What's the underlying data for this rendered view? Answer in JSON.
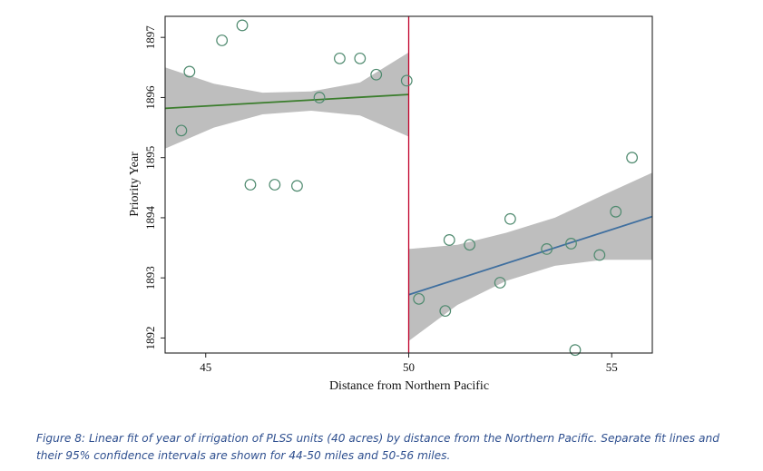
{
  "chart_data": {
    "type": "scatter",
    "xlabel": "Distance from Northern Pacific",
    "ylabel": "Priority Year",
    "xlim": [
      44.0,
      56.0
    ],
    "ylim": [
      1891.75,
      1897.35
    ],
    "xticks": [
      45,
      50,
      55
    ],
    "yticks": [
      1892,
      1893,
      1894,
      1895,
      1896,
      1897
    ],
    "cutoff_x": 50,
    "grid": false,
    "points": [
      {
        "x": 44.4,
        "y": 1895.45
      },
      {
        "x": 44.6,
        "y": 1896.43
      },
      {
        "x": 45.4,
        "y": 1896.95
      },
      {
        "x": 45.9,
        "y": 1897.2
      },
      {
        "x": 47.8,
        "y": 1896.0
      },
      {
        "x": 46.1,
        "y": 1894.55
      },
      {
        "x": 46.7,
        "y": 1894.55
      },
      {
        "x": 47.25,
        "y": 1894.53
      },
      {
        "x": 48.3,
        "y": 1896.65
      },
      {
        "x": 48.8,
        "y": 1896.65
      },
      {
        "x": 49.2,
        "y": 1896.38
      },
      {
        "x": 49.95,
        "y": 1896.28
      },
      {
        "x": 50.25,
        "y": 1892.65
      },
      {
        "x": 50.9,
        "y": 1892.45
      },
      {
        "x": 51.0,
        "y": 1893.63
      },
      {
        "x": 51.5,
        "y": 1893.55
      },
      {
        "x": 52.25,
        "y": 1892.92
      },
      {
        "x": 52.5,
        "y": 1893.98
      },
      {
        "x": 53.4,
        "y": 1893.48
      },
      {
        "x": 54.0,
        "y": 1893.57
      },
      {
        "x": 54.1,
        "y": 1891.8
      },
      {
        "x": 54.7,
        "y": 1893.38
      },
      {
        "x": 55.1,
        "y": 1894.1
      },
      {
        "x": 55.5,
        "y": 1895.0
      }
    ],
    "fits": [
      {
        "range": [
          44.0,
          50.0
        ],
        "line": [
          1895.82,
          1896.05
        ],
        "ci_upper": [
          1896.5,
          1896.23,
          1896.08,
          1896.1,
          1896.25,
          1896.75
        ],
        "ci_lower": [
          1895.15,
          1895.5,
          1895.72,
          1895.78,
          1895.7,
          1895.35
        ],
        "line_color": "#3a7d2c"
      },
      {
        "range": [
          50.0,
          56.0
        ],
        "line": [
          1892.72,
          1894.02
        ],
        "ci_upper": [
          1893.48,
          1893.55,
          1893.75,
          1894.0,
          1894.38,
          1894.75
        ],
        "ci_lower": [
          1891.95,
          1892.55,
          1892.95,
          1893.2,
          1893.3,
          1893.3
        ],
        "line_color": "#3f6f9f"
      }
    ],
    "ci_color": "#bebebe",
    "marker_color": "#4f8a6f",
    "cutoff_color": "#c0002a"
  },
  "caption": "Figure 8: Linear fit of year of irrigation of PLSS units (40 acres) by distance from the Northern Pacific. Separate fit lines and their 95% confidence intervals are shown for 44-50 miles and 50-56 miles."
}
